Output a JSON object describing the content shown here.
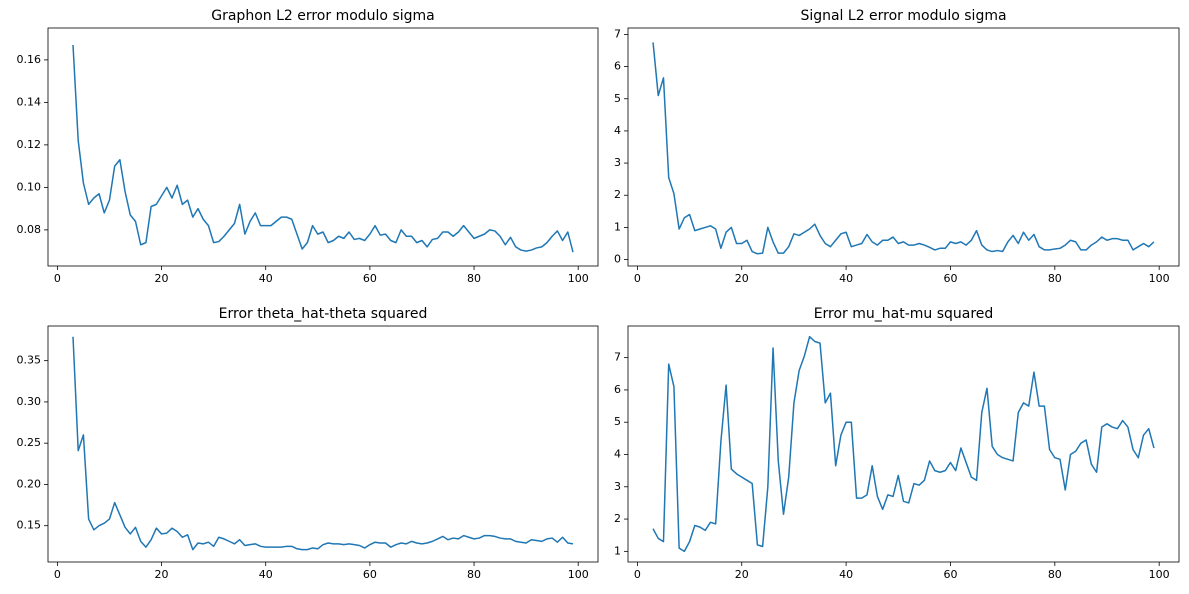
{
  "chart_data": [
    {
      "type": "line",
      "title": "Graphon L2 error modulo sigma",
      "x": [
        3,
        4,
        5,
        6,
        7,
        8,
        9,
        10,
        11,
        12,
        13,
        14,
        15,
        16,
        17,
        18,
        19,
        20,
        21,
        22,
        23,
        24,
        25,
        26,
        27,
        28,
        29,
        30,
        31,
        32,
        33,
        34,
        35,
        36,
        37,
        38,
        39,
        40,
        41,
        42,
        43,
        44,
        45,
        46,
        47,
        48,
        49,
        50,
        51,
        52,
        53,
        54,
        55,
        56,
        57,
        58,
        59,
        60,
        61,
        62,
        63,
        64,
        65,
        66,
        67,
        68,
        69,
        70,
        71,
        72,
        73,
        74,
        75,
        76,
        77,
        78,
        79,
        80,
        81,
        82,
        83,
        84,
        85,
        86,
        87,
        88,
        89,
        90,
        91,
        92,
        93,
        94,
        95,
        96,
        97,
        98,
        99
      ],
      "series": [
        {
          "color": "#1f77b4",
          "values": [
            0.167,
            0.122,
            0.102,
            0.092,
            0.095,
            0.097,
            0.088,
            0.094,
            0.11,
            0.113,
            0.098,
            0.087,
            0.084,
            0.073,
            0.074,
            0.091,
            0.092,
            0.096,
            0.1,
            0.095,
            0.101,
            0.092,
            0.094,
            0.086,
            0.09,
            0.085,
            0.082,
            0.074,
            0.0745,
            0.077,
            0.08,
            0.083,
            0.092,
            0.078,
            0.084,
            0.088,
            0.082,
            0.082,
            0.082,
            0.084,
            0.086,
            0.086,
            0.085,
            0.078,
            0.071,
            0.074,
            0.082,
            0.078,
            0.079,
            0.074,
            0.075,
            0.077,
            0.076,
            0.079,
            0.0755,
            0.076,
            0.075,
            0.078,
            0.082,
            0.0775,
            0.078,
            0.075,
            0.074,
            0.08,
            0.077,
            0.077,
            0.074,
            0.075,
            0.072,
            0.0755,
            0.076,
            0.079,
            0.079,
            0.077,
            0.079,
            0.082,
            0.079,
            0.076,
            0.077,
            0.078,
            0.08,
            0.0795,
            0.077,
            0.073,
            0.0765,
            0.072,
            0.0705,
            0.07,
            0.0705,
            0.0715,
            0.072,
            0.074,
            0.077,
            0.0795,
            0.075,
            0.079,
            0.0695
          ]
        }
      ],
      "xlim": [
        -1.8,
        103.8
      ],
      "xticks": [
        0,
        20,
        40,
        60,
        80,
        100
      ],
      "ylim": [
        0.063,
        0.175
      ],
      "yticks": [
        0.08,
        {
          "value": 0.1,
          "label": "0.10"
        },
        0.12,
        0.14,
        0.16
      ]
    },
    {
      "type": "line",
      "title": "Signal L2 error modulo sigma",
      "x": [
        3,
        4,
        5,
        6,
        7,
        8,
        9,
        10,
        11,
        12,
        13,
        14,
        15,
        16,
        17,
        18,
        19,
        20,
        21,
        22,
        23,
        24,
        25,
        26,
        27,
        28,
        29,
        30,
        31,
        32,
        33,
        34,
        35,
        36,
        37,
        38,
        39,
        40,
        41,
        42,
        43,
        44,
        45,
        46,
        47,
        48,
        49,
        50,
        51,
        52,
        53,
        54,
        55,
        56,
        57,
        58,
        59,
        60,
        61,
        62,
        63,
        64,
        65,
        66,
        67,
        68,
        69,
        70,
        71,
        72,
        73,
        74,
        75,
        76,
        77,
        78,
        79,
        80,
        81,
        82,
        83,
        84,
        85,
        86,
        87,
        88,
        89,
        90,
        91,
        92,
        93,
        94,
        95,
        96,
        97,
        98,
        99
      ],
      "series": [
        {
          "color": "#1f77b4",
          "values": [
            6.75,
            5.1,
            5.65,
            2.55,
            2.05,
            0.95,
            1.3,
            1.4,
            0.9,
            0.95,
            1.0,
            1.05,
            0.95,
            0.35,
            0.85,
            1.0,
            0.5,
            0.5,
            0.6,
            0.25,
            0.18,
            0.2,
            1.0,
            0.55,
            0.2,
            0.2,
            0.4,
            0.8,
            0.75,
            0.85,
            0.95,
            1.1,
            0.75,
            0.5,
            0.4,
            0.6,
            0.8,
            0.85,
            0.4,
            0.45,
            0.5,
            0.78,
            0.55,
            0.45,
            0.6,
            0.6,
            0.7,
            0.5,
            0.55,
            0.45,
            0.45,
            0.5,
            0.45,
            0.38,
            0.3,
            0.35,
            0.35,
            0.55,
            0.5,
            0.55,
            0.45,
            0.6,
            0.9,
            0.45,
            0.3,
            0.25,
            0.28,
            0.25,
            0.55,
            0.75,
            0.5,
            0.85,
            0.6,
            0.78,
            0.4,
            0.3,
            0.3,
            0.33,
            0.35,
            0.45,
            0.6,
            0.55,
            0.3,
            0.3,
            0.45,
            0.55,
            0.7,
            0.6,
            0.65,
            0.65,
            0.6,
            0.6,
            0.3,
            0.4,
            0.5,
            0.4,
            0.55
          ]
        }
      ],
      "xlim": [
        -1.8,
        103.8
      ],
      "xticks": [
        0,
        20,
        40,
        60,
        80,
        100
      ],
      "ylim": [
        -0.2,
        7.2
      ],
      "yticks": [
        0,
        1,
        2,
        3,
        4,
        5,
        6,
        7
      ]
    },
    {
      "type": "line",
      "title": "Error theta_hat-theta squared",
      "x": [
        3,
        4,
        5,
        6,
        7,
        8,
        9,
        10,
        11,
        12,
        13,
        14,
        15,
        16,
        17,
        18,
        19,
        20,
        21,
        22,
        23,
        24,
        25,
        26,
        27,
        28,
        29,
        30,
        31,
        32,
        33,
        34,
        35,
        36,
        37,
        38,
        39,
        40,
        41,
        42,
        43,
        44,
        45,
        46,
        47,
        48,
        49,
        50,
        51,
        52,
        53,
        54,
        55,
        56,
        57,
        58,
        59,
        60,
        61,
        62,
        63,
        64,
        65,
        66,
        67,
        68,
        69,
        70,
        71,
        72,
        73,
        74,
        75,
        76,
        77,
        78,
        79,
        80,
        81,
        82,
        83,
        84,
        85,
        86,
        87,
        88,
        89,
        90,
        91,
        92,
        93,
        94,
        95,
        96,
        97,
        98,
        99
      ],
      "series": [
        {
          "color": "#1f77b4",
          "values": [
            0.379,
            0.241,
            0.26,
            0.158,
            0.145,
            0.15,
            0.153,
            0.158,
            0.178,
            0.163,
            0.148,
            0.14,
            0.148,
            0.131,
            0.124,
            0.133,
            0.147,
            0.14,
            0.141,
            0.147,
            0.143,
            0.136,
            0.139,
            0.121,
            0.129,
            0.128,
            0.13,
            0.125,
            0.136,
            0.134,
            0.131,
            0.128,
            0.133,
            0.126,
            0.127,
            0.128,
            0.125,
            0.124,
            0.124,
            0.124,
            0.124,
            0.125,
            0.125,
            0.122,
            0.121,
            0.121,
            0.123,
            0.122,
            0.127,
            0.129,
            0.128,
            0.128,
            0.127,
            0.128,
            0.127,
            0.126,
            0.123,
            0.127,
            0.13,
            0.129,
            0.129,
            0.124,
            0.127,
            0.129,
            0.128,
            0.131,
            0.129,
            0.128,
            0.129,
            0.131,
            0.134,
            0.137,
            0.133,
            0.135,
            0.134,
            0.138,
            0.136,
            0.134,
            0.135,
            0.138,
            0.138,
            0.137,
            0.135,
            0.134,
            0.134,
            0.131,
            0.13,
            0.129,
            0.133,
            0.132,
            0.131,
            0.134,
            0.135,
            0.13,
            0.136,
            0.129,
            0.128
          ]
        }
      ],
      "xlim": [
        -1.8,
        103.8
      ],
      "xticks": [
        0,
        20,
        40,
        60,
        80,
        100
      ],
      "ylim": [
        0.106,
        0.392
      ],
      "yticks": [
        0.15,
        {
          "value": 0.2,
          "label": "0.20"
        },
        0.25,
        {
          "value": 0.3,
          "label": "0.30"
        },
        0.35
      ]
    },
    {
      "type": "line",
      "title": "Error mu_hat-mu squared",
      "x": [
        3,
        4,
        5,
        6,
        7,
        8,
        9,
        10,
        11,
        12,
        13,
        14,
        15,
        16,
        17,
        18,
        19,
        20,
        21,
        22,
        23,
        24,
        25,
        26,
        27,
        28,
        29,
        30,
        31,
        32,
        33,
        34,
        35,
        36,
        37,
        38,
        39,
        40,
        41,
        42,
        43,
        44,
        45,
        46,
        47,
        48,
        49,
        50,
        51,
        52,
        53,
        54,
        55,
        56,
        57,
        58,
        59,
        60,
        61,
        62,
        63,
        64,
        65,
        66,
        67,
        68,
        69,
        70,
        71,
        72,
        73,
        74,
        75,
        76,
        77,
        78,
        79,
        80,
        81,
        82,
        83,
        84,
        85,
        86,
        87,
        88,
        89,
        90,
        91,
        92,
        93,
        94,
        95,
        96,
        97,
        98,
        99
      ],
      "series": [
        {
          "color": "#1f77b4",
          "values": [
            1.7,
            1.4,
            1.3,
            6.8,
            6.1,
            1.1,
            1.0,
            1.3,
            1.8,
            1.75,
            1.65,
            1.9,
            1.85,
            4.4,
            6.15,
            3.55,
            3.4,
            3.3,
            3.2,
            3.1,
            1.2,
            1.15,
            3.0,
            7.3,
            3.8,
            2.15,
            3.3,
            5.6,
            6.6,
            7.05,
            7.65,
            7.5,
            7.45,
            5.6,
            5.9,
            3.65,
            4.6,
            5.0,
            5.0,
            2.65,
            2.65,
            2.75,
            3.65,
            2.7,
            2.3,
            2.75,
            2.7,
            3.35,
            2.55,
            2.5,
            3.1,
            3.05,
            3.2,
            3.8,
            3.5,
            3.45,
            3.5,
            3.75,
            3.5,
            4.2,
            3.75,
            3.3,
            3.2,
            5.3,
            6.05,
            4.25,
            4.0,
            3.9,
            3.85,
            3.8,
            5.3,
            5.6,
            5.5,
            6.55,
            5.5,
            5.5,
            4.15,
            3.9,
            3.85,
            2.9,
            4.0,
            4.1,
            4.35,
            4.45,
            3.7,
            3.45,
            4.85,
            4.95,
            4.85,
            4.8,
            5.05,
            4.85,
            4.15,
            3.9,
            4.6,
            4.8,
            4.2
          ]
        }
      ],
      "xlim": [
        -1.8,
        103.8
      ],
      "xticks": [
        0,
        20,
        40,
        60,
        80,
        100
      ],
      "ylim": [
        0.67,
        7.98
      ],
      "yticks": [
        1,
        2,
        3,
        4,
        5,
        6,
        7
      ]
    }
  ]
}
